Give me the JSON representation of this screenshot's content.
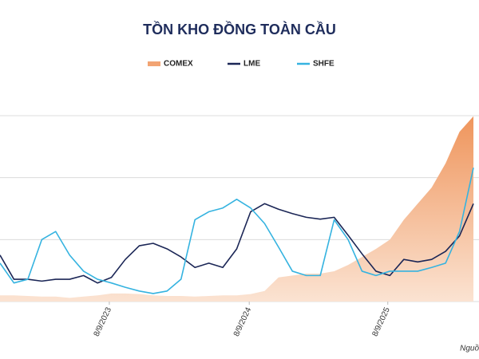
{
  "chart_data": {
    "type": "area-line",
    "title": "TỒN KHO ĐỒNG TOÀN CẦU",
    "note": "Nguồ",
    "x": [
      2022.9,
      2023.0,
      2023.1,
      2023.2,
      2023.3,
      2023.4,
      2023.5,
      2023.6,
      2023.7,
      2023.8,
      2023.9,
      2024.0,
      2024.1,
      2024.2,
      2024.3,
      2024.4,
      2024.5,
      2024.6,
      2024.7,
      2024.8,
      2024.9,
      2025.0,
      2025.1,
      2025.2,
      2025.3,
      2025.4,
      2025.5,
      2025.6,
      2025.7,
      2025.8,
      2025.9,
      2026.0,
      2026.1,
      2026.2,
      2026.3
    ],
    "xlim": [
      2022.9,
      2026.34
    ],
    "xticks": [
      {
        "value": 2023.685,
        "label": "8/9/2023"
      },
      {
        "value": 2024.69,
        "label": "8/9/2024"
      },
      {
        "value": 2025.685,
        "label": "8/9/2025"
      }
    ],
    "ylim": [
      0,
      3
    ],
    "yticks": [
      0,
      1,
      2,
      3
    ],
    "grid": true,
    "legend": "top",
    "series": [
      {
        "name": "COMEX",
        "kind": "area",
        "color": "#f2a473",
        "values": [
          0.1,
          0.1,
          0.09,
          0.08,
          0.08,
          0.06,
          0.08,
          0.1,
          0.13,
          0.13,
          0.12,
          0.1,
          0.09,
          0.09,
          0.08,
          0.09,
          0.1,
          0.1,
          0.12,
          0.17,
          0.39,
          0.42,
          0.45,
          0.45,
          0.49,
          0.59,
          0.72,
          0.85,
          1.0,
          1.32,
          1.58,
          1.84,
          2.23,
          2.74,
          2.99
        ]
      },
      {
        "name": "LME",
        "kind": "line",
        "color": "#1b2656",
        "values": [
          0.75,
          0.36,
          0.36,
          0.33,
          0.36,
          0.36,
          0.42,
          0.3,
          0.39,
          0.68,
          0.9,
          0.94,
          0.85,
          0.72,
          0.55,
          0.62,
          0.55,
          0.85,
          1.45,
          1.58,
          1.49,
          1.42,
          1.36,
          1.33,
          1.36,
          1.07,
          0.77,
          0.49,
          0.42,
          0.68,
          0.64,
          0.68,
          0.81,
          1.06,
          1.58
        ]
      },
      {
        "name": "SHFE",
        "kind": "line",
        "color": "#35b3e0",
        "values": [
          0.62,
          0.3,
          0.36,
          1.0,
          1.13,
          0.75,
          0.49,
          0.36,
          0.3,
          0.23,
          0.17,
          0.13,
          0.17,
          0.36,
          1.32,
          1.45,
          1.51,
          1.65,
          1.51,
          1.26,
          0.88,
          0.49,
          0.42,
          0.42,
          1.32,
          1.0,
          0.49,
          0.42,
          0.49,
          0.49,
          0.49,
          0.55,
          0.62,
          1.13,
          2.16
        ]
      }
    ]
  }
}
